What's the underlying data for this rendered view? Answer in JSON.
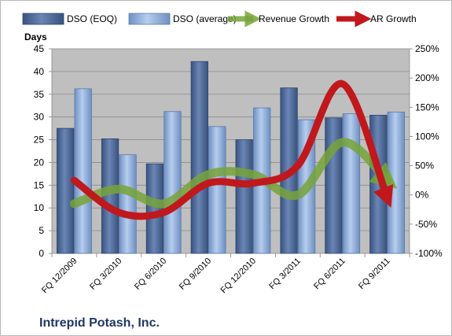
{
  "chart_data": {
    "type": "bar",
    "title": "Intrepid Potash, Inc.",
    "ylabel_left": "Days",
    "ylim_left": [
      0,
      45
    ],
    "yticks_left": [
      "0",
      "5",
      "10",
      "15",
      "20",
      "25",
      "30",
      "35",
      "40",
      "45"
    ],
    "ylim_right": [
      -100,
      250
    ],
    "yticks_right": [
      "-100%",
      "-50%",
      "0%",
      "50%",
      "100%",
      "150%",
      "200%",
      "250%"
    ],
    "categories": [
      "FQ 12/2009",
      "FQ 3/2010",
      "FQ 6/2010",
      "FQ 9/2010",
      "FQ 12/2010",
      "FQ 3/2011",
      "FQ 6/2011",
      "FQ 9/2011"
    ],
    "series": [
      {
        "name": "DSO (EOQ)",
        "kind": "bar",
        "axis": "left",
        "values": [
          27.5,
          25.2,
          19.7,
          42.2,
          25.0,
          36.4,
          29.8,
          30.4
        ]
      },
      {
        "name": "DSO (average)",
        "kind": "bar",
        "axis": "left",
        "values": [
          36.2,
          21.7,
          31.2,
          27.9,
          32.0,
          29.4,
          30.7,
          31.1
        ]
      },
      {
        "name": "Revenue Growth",
        "kind": "line",
        "axis": "right",
        "values": [
          -15,
          10,
          -15,
          35,
          35,
          0,
          90,
          25
        ]
      },
      {
        "name": "AR Growth",
        "kind": "line",
        "axis": "right",
        "values": [
          25,
          -30,
          -30,
          20,
          20,
          50,
          190,
          -5
        ]
      }
    ],
    "colors": {
      "dso_eoq": "#4f6a97",
      "dso_avg": "#8faedb",
      "revenue_growth": "#77a33a",
      "ar_growth": "#c0181d",
      "plot_bg": "#bfbfbf",
      "title_color": "#1f3864"
    },
    "grid": true,
    "legend": "top"
  }
}
